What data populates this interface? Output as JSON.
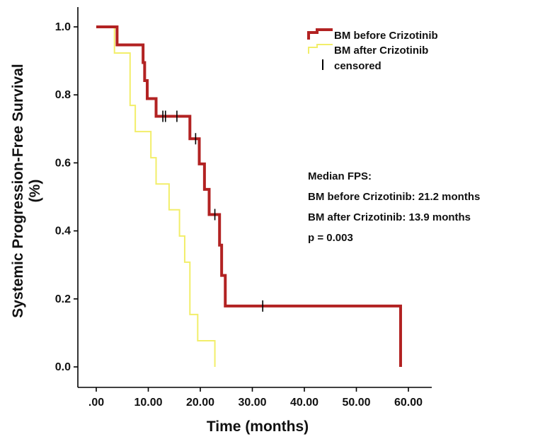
{
  "chart_data": {
    "type": "line",
    "subtype": "kaplan-meier",
    "xlabel": "Time (months)",
    "ylabel_lines": [
      "Systemic Progression-Free Survival",
      "(%)"
    ],
    "xlim": [
      -2,
      62
    ],
    "ylim": [
      -0.03,
      1.05
    ],
    "x_ticks": [
      0,
      10,
      20,
      30,
      40,
      50,
      60
    ],
    "x_tick_labels": [
      ".00",
      "10.00",
      "20.00",
      "30.00",
      "40.00",
      "50.00",
      "60.00"
    ],
    "y_ticks": [
      0.0,
      0.2,
      0.4,
      0.6,
      0.8,
      1.0
    ],
    "y_tick_labels": [
      "0.0",
      "0.2",
      "0.4",
      "0.6",
      "0.8",
      "1.0"
    ],
    "grid": false,
    "legend_position": "top-right",
    "series": [
      {
        "name": "BM before Crizotinib",
        "color": "#b22222",
        "steps": [
          [
            0,
            1.0
          ],
          [
            4.0,
            0.947
          ],
          [
            9.0,
            0.895
          ],
          [
            9.3,
            0.842
          ],
          [
            9.8,
            0.789
          ],
          [
            11.5,
            0.737
          ],
          [
            18.0,
            0.671
          ],
          [
            19.8,
            0.597
          ],
          [
            20.8,
            0.522
          ],
          [
            21.7,
            0.448
          ],
          [
            23.7,
            0.358
          ],
          [
            24.1,
            0.269
          ],
          [
            24.8,
            0.179
          ],
          [
            58.5,
            0.0
          ]
        ],
        "censored": [
          [
            12.8,
            0.737
          ],
          [
            13.3,
            0.737
          ],
          [
            15.5,
            0.737
          ],
          [
            19.1,
            0.671
          ],
          [
            22.8,
            0.448
          ],
          [
            32.0,
            0.179
          ]
        ]
      },
      {
        "name": "BM after Crizotinib",
        "color": "#f2ee6a",
        "steps": [
          [
            0,
            1.0
          ],
          [
            3.5,
            0.923
          ],
          [
            6.5,
            0.769
          ],
          [
            7.5,
            0.692
          ],
          [
            10.5,
            0.615
          ],
          [
            11.5,
            0.538
          ],
          [
            14.0,
            0.462
          ],
          [
            16.0,
            0.385
          ],
          [
            17.0,
            0.308
          ],
          [
            18.0,
            0.154
          ],
          [
            19.5,
            0.077
          ],
          [
            22.8,
            0.0
          ]
        ],
        "censored": []
      }
    ],
    "legend": {
      "entries": [
        "BM before Crizotinib",
        "BM after Crizotinib"
      ],
      "censored_label": "censored"
    },
    "annotations": [
      "Median FPS:",
      "BM before Crizotinib: 21.2 months",
      "BM after Crizotinib: 13.9 months",
      "p = 0.003"
    ]
  }
}
